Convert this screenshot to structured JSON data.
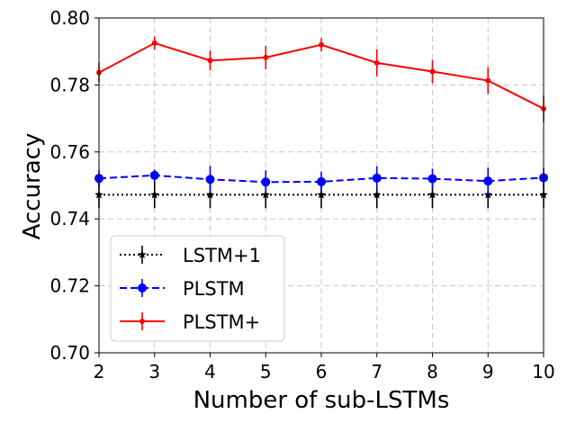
{
  "chart_data": {
    "type": "line",
    "title": "",
    "xlabel": "Number of sub-LSTMs",
    "ylabel": "Accuracy",
    "xlim": [
      2,
      10
    ],
    "ylim": [
      0.7,
      0.8
    ],
    "xticks": [
      2,
      3,
      4,
      5,
      6,
      7,
      8,
      9,
      10
    ],
    "xtick_labels": [
      "2",
      "3",
      "4",
      "5",
      "6",
      "7",
      "8",
      "9",
      "10"
    ],
    "yticks": [
      0.7,
      0.72,
      0.74,
      0.76,
      0.78,
      0.8
    ],
    "ytick_labels": [
      "0.70",
      "0.72",
      "0.74",
      "0.76",
      "0.78",
      "0.80"
    ],
    "grid": true,
    "legend_position": "lower-left",
    "series": [
      {
        "name": "LSTM+1",
        "color": "#000000",
        "linestyle": "dotted",
        "marker": "star",
        "x": [
          2,
          3,
          4,
          5,
          6,
          7,
          8,
          9,
          10
        ],
        "values": [
          0.7472,
          0.7472,
          0.7472,
          0.7472,
          0.7472,
          0.7472,
          0.7472,
          0.7472,
          0.7472
        ],
        "errors": [
          0.004,
          0.004,
          0.004,
          0.004,
          0.004,
          0.004,
          0.004,
          0.004,
          0.004
        ]
      },
      {
        "name": "PLSTM",
        "color": "#0000ff",
        "linestyle": "dashed",
        "marker": "circle",
        "x": [
          2,
          3,
          4,
          5,
          6,
          7,
          8,
          9,
          10
        ],
        "values": [
          0.7521,
          0.753,
          0.7518,
          0.751,
          0.7511,
          0.7522,
          0.752,
          0.7513,
          0.7523
        ],
        "errors": [
          0.0025,
          0.0018,
          0.004,
          0.0035,
          0.003,
          0.0035,
          0.003,
          0.004,
          0.003
        ]
      },
      {
        "name": "PLSTM+",
        "color": "#ff0000",
        "linestyle": "solid",
        "marker": "dot",
        "x": [
          2,
          3,
          4,
          5,
          6,
          7,
          8,
          9,
          10
        ],
        "values": [
          0.7837,
          0.7925,
          0.7873,
          0.7882,
          0.792,
          0.7866,
          0.784,
          0.7813,
          0.7729
        ],
        "errors": [
          0.003,
          0.002,
          0.003,
          0.0035,
          0.002,
          0.004,
          0.0035,
          0.004,
          0.004
        ]
      }
    ]
  }
}
